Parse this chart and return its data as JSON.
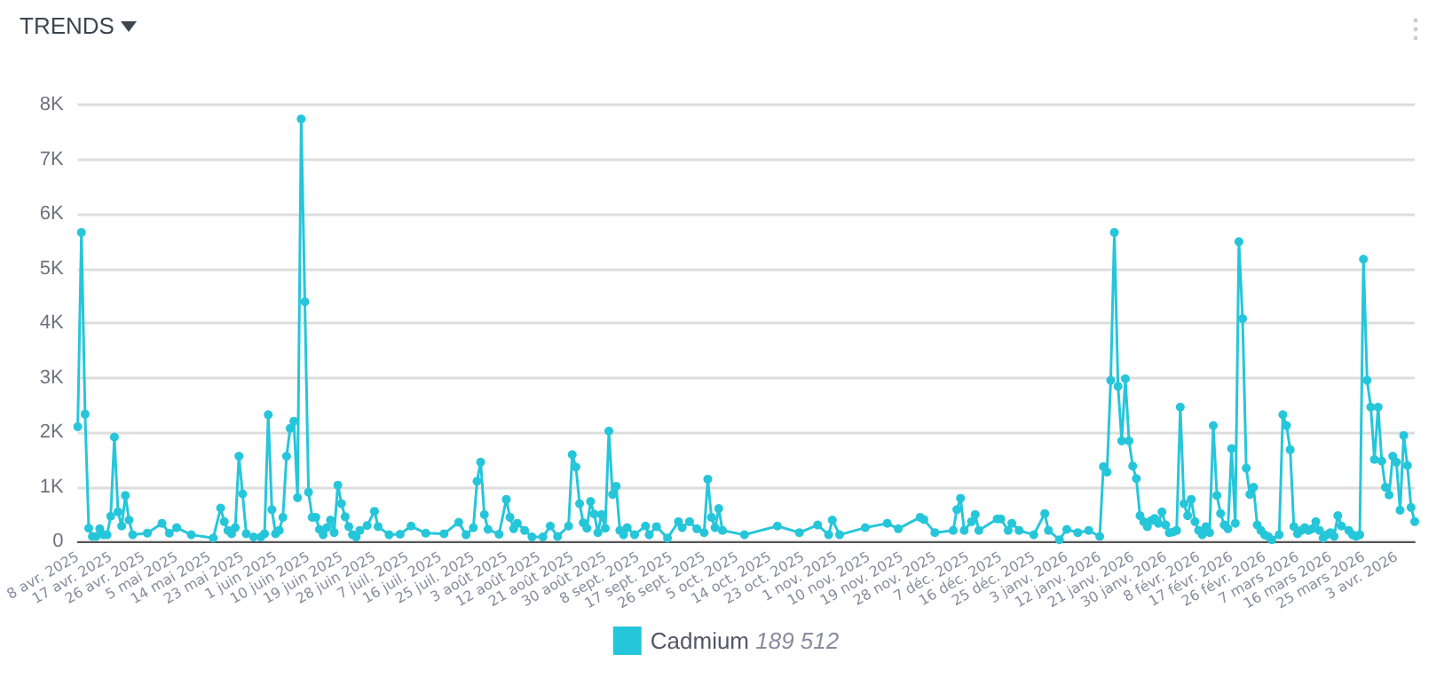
{
  "chart_data": {
    "type": "line",
    "title": "TRENDS",
    "annotations": [
      "189 512"
    ],
    "x": [
      "2025-04-08",
      "2025-04-09",
      "2025-04-10",
      "2025-04-11",
      "2025-04-12",
      "2025-04-13",
      "2025-04-14",
      "2025-04-15",
      "2025-04-16",
      "2025-04-17",
      "2025-04-18",
      "2025-04-19",
      "2025-04-20",
      "2025-04-21",
      "2025-04-22",
      "2025-04-23",
      "2025-04-27",
      "2025-05-01",
      "2025-05-03",
      "2025-05-05",
      "2025-05-09",
      "2025-05-15",
      "2025-05-17",
      "2025-05-18",
      "2025-05-19",
      "2025-05-20",
      "2025-05-21",
      "2025-05-22",
      "2025-05-23",
      "2025-05-24",
      "2025-05-26",
      "2025-05-28",
      "2025-05-29",
      "2025-05-30",
      "2025-05-31",
      "2025-06-01",
      "2025-06-02",
      "2025-06-03",
      "2025-06-04",
      "2025-06-05",
      "2025-06-06",
      "2025-06-07",
      "2025-06-08",
      "2025-06-09",
      "2025-06-10",
      "2025-06-11",
      "2025-06-12",
      "2025-06-13",
      "2025-06-14",
      "2025-06-15",
      "2025-06-16",
      "2025-06-17",
      "2025-06-18",
      "2025-06-19",
      "2025-06-20",
      "2025-06-21",
      "2025-06-22",
      "2025-06-23",
      "2025-06-24",
      "2025-06-26",
      "2025-06-28",
      "2025-06-29",
      "2025-07-02",
      "2025-07-05",
      "2025-07-08",
      "2025-07-12",
      "2025-07-17",
      "2025-07-21",
      "2025-07-23",
      "2025-07-25",
      "2025-07-26",
      "2025-07-27",
      "2025-07-28",
      "2025-07-29",
      "2025-08-01",
      "2025-08-03",
      "2025-08-04",
      "2025-08-05",
      "2025-08-06",
      "2025-08-08",
      "2025-08-10",
      "2025-08-13",
      "2025-08-15",
      "2025-08-17",
      "2025-08-20",
      "2025-08-21",
      "2025-08-22",
      "2025-08-23",
      "2025-08-24",
      "2025-08-25",
      "2025-08-26",
      "2025-08-27",
      "2025-08-28",
      "2025-08-29",
      "2025-08-30",
      "2025-08-31",
      "2025-09-01",
      "2025-09-02",
      "2025-09-03",
      "2025-09-04",
      "2025-09-05",
      "2025-09-07",
      "2025-09-10",
      "2025-09-11",
      "2025-09-13",
      "2025-09-16",
      "2025-09-19",
      "2025-09-20",
      "2025-09-22",
      "2025-09-24",
      "2025-09-26",
      "2025-09-27",
      "2025-09-28",
      "2025-09-29",
      "2025-09-30",
      "2025-10-01",
      "2025-10-07",
      "2025-10-16",
      "2025-10-22",
      "2025-10-27",
      "2025-10-30",
      "2025-10-31",
      "2025-11-02",
      "2025-11-09",
      "2025-11-15",
      "2025-11-18",
      "2025-11-24",
      "2025-11-25",
      "2025-11-28",
      "2025-12-03",
      "2025-12-04",
      "2025-12-05",
      "2025-12-06",
      "2025-12-08",
      "2025-12-09",
      "2025-12-10",
      "2025-12-15",
      "2025-12-16",
      "2025-12-18",
      "2025-12-19",
      "2025-12-21",
      "2025-12-25",
      "2025-12-28",
      "2025-12-29",
      "2026-01-01",
      "2026-01-03",
      "2026-01-06",
      "2026-01-09",
      "2026-01-12",
      "2026-01-13",
      "2026-01-14",
      "2026-01-15",
      "2026-01-16",
      "2026-01-17",
      "2026-01-18",
      "2026-01-19",
      "2026-01-20",
      "2026-01-21",
      "2026-01-22",
      "2026-01-23",
      "2026-01-24",
      "2026-01-25",
      "2026-01-26",
      "2026-01-27",
      "2026-01-28",
      "2026-01-29",
      "2026-01-30",
      "2026-01-31",
      "2026-02-01",
      "2026-02-02",
      "2026-02-03",
      "2026-02-04",
      "2026-02-05",
      "2026-02-06",
      "2026-02-07",
      "2026-02-08",
      "2026-02-09",
      "2026-02-10",
      "2026-02-11",
      "2026-02-12",
      "2026-02-13",
      "2026-02-14",
      "2026-02-15",
      "2026-02-16",
      "2026-02-17",
      "2026-02-18",
      "2026-02-19",
      "2026-02-20",
      "2026-02-21",
      "2026-02-22",
      "2026-02-23",
      "2026-02-24",
      "2026-02-25",
      "2026-02-26",
      "2026-02-27",
      "2026-02-28",
      "2026-03-02",
      "2026-03-03",
      "2026-03-04",
      "2026-03-05",
      "2026-03-06",
      "2026-03-07",
      "2026-03-08",
      "2026-03-09",
      "2026-03-10",
      "2026-03-11",
      "2026-03-12",
      "2026-03-13",
      "2026-03-14",
      "2026-03-15",
      "2026-03-16",
      "2026-03-17",
      "2026-03-18",
      "2026-03-19",
      "2026-03-21",
      "2026-03-22",
      "2026-03-23",
      "2026-03-24",
      "2026-03-25",
      "2026-03-26",
      "2026-03-27",
      "2026-03-28",
      "2026-03-29",
      "2026-03-30",
      "2026-03-31",
      "2026-04-01",
      "2026-04-02",
      "2026-04-03",
      "2026-04-04",
      "2026-04-05",
      "2026-04-06",
      "2026-04-07",
      "2026-04-08"
    ],
    "series": [
      {
        "name": "Cadmium",
        "color": "#26c6da",
        "values": [
          2100,
          5660,
          2330,
          240,
          90,
          90,
          230,
          120,
          120,
          460,
          1910,
          540,
          280,
          840,
          390,
          120,
          150,
          330,
          150,
          250,
          120,
          60,
          610,
          360,
          200,
          140,
          250,
          1560,
          870,
          140,
          80,
          80,
          140,
          2320,
          580,
          140,
          200,
          440,
          1560,
          2070,
          2200,
          800,
          7740,
          4390,
          900,
          440,
          440,
          220,
          120,
          250,
          390,
          160,
          1030,
          690,
          450,
          270,
          120,
          80,
          200,
          290,
          550,
          270,
          120,
          130,
          280,
          150,
          140,
          350,
          120,
          250,
          1100,
          1450,
          490,
          220,
          130,
          770,
          440,
          230,
          330,
          200,
          80,
          80,
          280,
          90,
          280,
          1590,
          1360,
          690,
          340,
          240,
          730,
          500,
          160,
          490,
          240,
          2020,
          860,
          1010,
          200,
          120,
          250,
          120,
          280,
          120,
          270,
          60,
          360,
          250,
          360,
          230,
          160,
          1140,
          440,
          250,
          600,
          200,
          120,
          280,
          160,
          300,
          120,
          390,
          120,
          250,
          330,
          230,
          440,
          400,
          160,
          200,
          580,
          790,
          200,
          360,
          490,
          200,
          410,
          410,
          200,
          330,
          200,
          120,
          510,
          200,
          30,
          220,
          160,
          200,
          90,
          1370,
          1270,
          2950,
          5660,
          2840,
          1840,
          2980,
          1840,
          1380,
          1150,
          470,
          360,
          270,
          380,
          420,
          330,
          540,
          300,
          160,
          170,
          200,
          2460,
          690,
          470,
          770,
          360,
          200,
          120,
          270,
          160,
          2120,
          840,
          510,
          300,
          230,
          1700,
          330,
          5490,
          4080,
          1340,
          860,
          990,
          300,
          200,
          120,
          90,
          30,
          120,
          2320,
          2120,
          1680,
          270,
          140,
          200,
          250,
          200,
          230,
          360,
          200,
          60,
          120,
          160,
          90,
          470,
          280,
          200,
          120,
          90,
          120,
          5170,
          2950,
          2460,
          1500,
          2460,
          1470,
          990,
          850,
          1560,
          1450,
          570,
          1940,
          1390,
          620,
          360
        ]
      }
    ],
    "xlim": [
      "2025-04-08",
      "2026-04-08"
    ],
    "xticks": [
      {
        "value": "2025-04-08",
        "label": "8 avr. 2025"
      },
      {
        "value": "2025-04-17",
        "label": "17 avr. 2025"
      },
      {
        "value": "2025-04-26",
        "label": "26 avr. 2025"
      },
      {
        "value": "2025-05-05",
        "label": "5 mai 2025"
      },
      {
        "value": "2025-05-14",
        "label": "14 mai 2025"
      },
      {
        "value": "2025-05-23",
        "label": "23 mai 2025"
      },
      {
        "value": "2025-06-01",
        "label": "1 juin 2025"
      },
      {
        "value": "2025-06-10",
        "label": "10 juin 2025"
      },
      {
        "value": "2025-06-19",
        "label": "19 juin 2025"
      },
      {
        "value": "2025-06-28",
        "label": "28 juin 2025"
      },
      {
        "value": "2025-07-07",
        "label": "7 juil. 2025"
      },
      {
        "value": "2025-07-16",
        "label": "16 juil. 2025"
      },
      {
        "value": "2025-07-25",
        "label": "25 juil. 2025"
      },
      {
        "value": "2025-08-03",
        "label": "3 août 2025"
      },
      {
        "value": "2025-08-12",
        "label": "12 août 2025"
      },
      {
        "value": "2025-08-21",
        "label": "21 août 2025"
      },
      {
        "value": "2025-08-30",
        "label": "30 août 2025"
      },
      {
        "value": "2025-09-08",
        "label": "8 sept. 2025"
      },
      {
        "value": "2025-09-17",
        "label": "17 sept. 2025"
      },
      {
        "value": "2025-09-26",
        "label": "26 sept. 2025"
      },
      {
        "value": "2025-10-05",
        "label": "5 oct. 2025"
      },
      {
        "value": "2025-10-14",
        "label": "14 oct. 2025"
      },
      {
        "value": "2025-10-23",
        "label": "23 oct. 2025"
      },
      {
        "value": "2025-11-01",
        "label": "1 nov. 2025"
      },
      {
        "value": "2025-11-10",
        "label": "10 nov. 2025"
      },
      {
        "value": "2025-11-19",
        "label": "19 nov. 2025"
      },
      {
        "value": "2025-11-28",
        "label": "28 nov. 2025"
      },
      {
        "value": "2025-12-07",
        "label": "7 déc. 2025"
      },
      {
        "value": "2025-12-16",
        "label": "16 déc. 2025"
      },
      {
        "value": "2025-12-25",
        "label": "25 déc. 2025"
      },
      {
        "value": "2026-01-03",
        "label": "3 janv. 2026"
      },
      {
        "value": "2026-01-12",
        "label": "12 janv. 2026"
      },
      {
        "value": "2026-01-21",
        "label": "21 janv. 2026"
      },
      {
        "value": "2026-01-30",
        "label": "30 janv. 2026"
      },
      {
        "value": "2026-02-08",
        "label": "8 févr. 2026"
      },
      {
        "value": "2026-02-17",
        "label": "17 févr. 2026"
      },
      {
        "value": "2026-02-26",
        "label": "26 févr. 2026"
      },
      {
        "value": "2026-03-07",
        "label": "7 mars 2026"
      },
      {
        "value": "2026-03-16",
        "label": "16 mars 2026"
      },
      {
        "value": "2026-03-25",
        "label": "25 mars 2026"
      },
      {
        "value": "2026-04-03",
        "label": "3 avr. 2026"
      }
    ],
    "ylim": [
      0,
      8000
    ],
    "yticks": [
      0,
      {
        "value": 1000,
        "label": "1K"
      },
      {
        "value": 2000,
        "label": "2K"
      },
      {
        "value": 3000,
        "label": "3K"
      },
      {
        "value": 4000,
        "label": "4K"
      },
      {
        "value": 5000,
        "label": "5K"
      },
      {
        "value": 6000,
        "label": "6K"
      },
      {
        "value": 7000,
        "label": "7K"
      },
      {
        "value": 8000,
        "label": "8K"
      }
    ],
    "grid": "y",
    "legend": "bottom",
    "marker": "circle",
    "line_style": "solid"
  }
}
